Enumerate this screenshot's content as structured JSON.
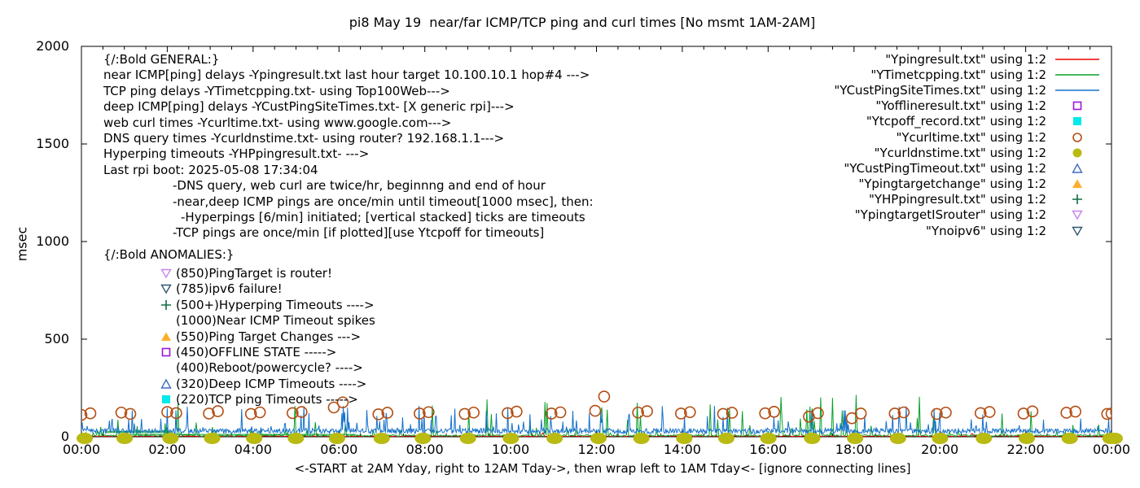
{
  "chart_data": {
    "type": "line",
    "title": "pi8 May 19  near/far ICMP/TCP ping and curl times [No msmt 1AM-2AM]",
    "xlabel": "<-START at 2AM Yday, right to 12AM Tday->, then wrap left to 1AM Tday<- [ignore connecting lines]",
    "ylabel": "msec",
    "ylim": [
      0,
      2000
    ],
    "hours": 24,
    "y_ticks": [
      "0",
      "500",
      "1000",
      "1500",
      "2000"
    ],
    "x_ticks": [
      "00:00",
      "02:00",
      "04:00",
      "06:00",
      "08:00",
      "10:00",
      "12:00",
      "14:00",
      "16:00",
      "18:00",
      "20:00",
      "22:00",
      "00:00"
    ],
    "grid": false,
    "legend_position": "top-right-inside",
    "note": "no measurements 1AM-2AM; msec values hug 0-160 at bottom of 0-2000 axis",
    "series": [
      {
        "name": "Ypingresult.txt",
        "type": "line",
        "color": "#ee0000",
        "gen": {
          "seed": 7,
          "points_per_hour": 20,
          "base": 1.5,
          "jitter": 3,
          "spike_prob": 0.004,
          "spike_min": 10,
          "spike_max": 30,
          "spike_pow": 2
        }
      },
      {
        "name": "YTimetcpping.txt",
        "type": "line",
        "color": "#09a02c",
        "gen": {
          "seed": 22,
          "points_per_hour": 40,
          "base": 2,
          "jitter": 9,
          "spike_prob": 0.085,
          "spike_min": 20,
          "spike_max": 215,
          "spike_pow": 2.2
        },
        "flat_segments": [
          {
            "h0": 0.55,
            "h1": 2.1,
            "v": 28
          },
          {
            "h0": 0.55,
            "h1": 2.1,
            "v": 22
          },
          {
            "h0": 1.1,
            "h1": 6.4,
            "v": 12
          }
        ]
      },
      {
        "name": "YCustPingSiteTimes.txt",
        "type": "line",
        "color": "#1470cc",
        "gen": {
          "seed": 33,
          "points_per_hour": 60,
          "base": 16,
          "jitter": 26,
          "spike_prob": 0.09,
          "spike_min": 40,
          "spike_max": 160,
          "spike_pow": 1.6
        }
      },
      {
        "name": "Yofflineresult.txt",
        "type": "points",
        "marker": "square-open",
        "color": "#9d13dd",
        "points": []
      },
      {
        "name": "Ytcpoff_record.txt",
        "type": "points",
        "marker": "square-filled",
        "color": "#00eaea",
        "points": []
      },
      {
        "name": "Ycurltime.txt",
        "type": "points",
        "marker": "circle-open",
        "color": "#b34d12",
        "pairs": [
          [
            0,
            112,
            120
          ],
          [
            0.93,
            124,
            117
          ],
          [
            2.0,
            127,
            121
          ],
          [
            2.97,
            119,
            131
          ],
          [
            3.95,
            117,
            125
          ],
          [
            4.92,
            121,
            127
          ],
          [
            5.88,
            150,
            176
          ],
          [
            6.92,
            115,
            123
          ],
          [
            7.88,
            119,
            126
          ],
          [
            8.93,
            117,
            124
          ],
          [
            9.93,
            121,
            129
          ],
          [
            10.95,
            119,
            125
          ],
          [
            11.97,
            133,
            206
          ],
          [
            12.97,
            124,
            131
          ],
          [
            13.97,
            119,
            126
          ],
          [
            14.95,
            117,
            123
          ],
          [
            15.93,
            120,
            128
          ],
          [
            16.95,
            103,
            121
          ],
          [
            17.95,
            95,
            119
          ],
          [
            18.95,
            119,
            125
          ],
          [
            19.93,
            117,
            124
          ],
          [
            20.95,
            121,
            127
          ],
          [
            21.95,
            119,
            130
          ],
          [
            22.95,
            123,
            129
          ],
          [
            23.9,
            117,
            125
          ],
          [
            24,
            119,
            113
          ]
        ]
      },
      {
        "name": "Ycurldnstime.txt",
        "type": "points",
        "marker": "circle-filled",
        "color": "#b9ba12",
        "at_value": 0,
        "hours": [
          0,
          0.93,
          2.0,
          2.97,
          3.95,
          4.92,
          5.88,
          6.92,
          7.88,
          8.93,
          9.93,
          10.95,
          11.97,
          12.97,
          13.97,
          14.95,
          15.93,
          16.95,
          17.95,
          18.95,
          19.93,
          20.95,
          21.95,
          22.95,
          23.9,
          24
        ]
      },
      {
        "name": "YCustPingTimeout.txt",
        "type": "points",
        "marker": "tri-up-open",
        "color": "#3f6cc0",
        "points": []
      },
      {
        "name": "Ypingtargetchange",
        "type": "points",
        "marker": "tri-up-filled",
        "color": "#fcae2b",
        "points": []
      },
      {
        "name": "YHPpingresult.txt",
        "type": "points",
        "marker": "plus",
        "color": "#156b46",
        "points": []
      },
      {
        "name": "YpingtargetISrouter",
        "type": "points",
        "marker": "tri-down-open",
        "color": "#c583f0",
        "points": []
      },
      {
        "name": "Ynoipv6",
        "type": "points",
        "marker": "tri-down-open",
        "color": "#2f566f",
        "points": []
      }
    ]
  },
  "legend": [
    {
      "label": "\"Ypingresult.txt\" using 1:2",
      "swatch": "line",
      "color": "#ee0000"
    },
    {
      "label": "\"YTimetcpping.txt\" using 1:2",
      "swatch": "line",
      "color": "#09a02c"
    },
    {
      "label": "\"YCustPingSiteTimes.txt\" using 1:2",
      "swatch": "line",
      "color": "#1470cc"
    },
    {
      "label": "\"Yofflineresult.txt\" using 1:2",
      "swatch": "square-open",
      "color": "#9d13dd"
    },
    {
      "label": "\"Ytcpoff_record.txt\" using 1:2",
      "swatch": "square-filled",
      "color": "#00eaea"
    },
    {
      "label": "\"Ycurltime.txt\" using 1:2",
      "swatch": "circle-open",
      "color": "#b34d12"
    },
    {
      "label": "\"Ycurldnstime.txt\" using 1:2",
      "swatch": "circle-filled",
      "color": "#b9ba12"
    },
    {
      "label": "\"YCustPingTimeout.txt\" using 1:2",
      "swatch": "tri-up-open",
      "color": "#3f6cc0"
    },
    {
      "label": "\"Ypingtargetchange\" using 1:2",
      "swatch": "tri-up-filled",
      "color": "#fcae2b"
    },
    {
      "label": "\"YHPpingresult.txt\" using 1:2",
      "swatch": "plus",
      "color": "#156b46"
    },
    {
      "label": "\"YpingtargetISrouter\" using 1:2",
      "swatch": "tri-down-open",
      "color": "#c583f0"
    },
    {
      "label": "\"Ynoipv6\" using 1:2",
      "swatch": "tri-down-open",
      "color": "#2f566f"
    }
  ],
  "annotations": {
    "general_lines": [
      {
        "indent": 0,
        "text": "{/:Bold GENERAL:}"
      },
      {
        "indent": 0,
        "text": "near ICMP[ping] delays -Ypingresult.txt last hour target 10.100.10.1 hop#4 --->"
      },
      {
        "indent": 0,
        "text": "TCP ping delays -YTimetcpping.txt- using Top100Web--->"
      },
      {
        "indent": 0,
        "text": "deep ICMP[ping] delays -YCustPingSiteTimes.txt- [X generic rpi]--->"
      },
      {
        "indent": 0,
        "text": "web curl times -Ycurltime.txt- using www.google.com--->"
      },
      {
        "indent": 0,
        "text": "DNS query times -Ycurldnstime.txt- using router? 192.168.1.1--->"
      },
      {
        "indent": 0,
        "text": "Hyperping timeouts -YHPpingresult.txt- --->"
      },
      {
        "indent": 0,
        "text": "Last rpi boot: 2025-05-08 17:34:04"
      },
      {
        "indent": 1,
        "text": "-DNS query, web curl are twice/hr, beginnng and end of hour"
      },
      {
        "indent": 1,
        "text": "-near,deep ICMP pings are once/min until timeout[1000 msec], then:"
      },
      {
        "indent": 2,
        "text": "-Hyperpings [6/min] initiated; [vertical stacked] ticks are timeouts"
      },
      {
        "indent": 1,
        "text": "-TCP pings are once/min [if plotted][use Ytcpoff for timeouts]"
      }
    ],
    "anomalies_heading": "{/:Bold ANOMALIES:}",
    "anomalies_items": [
      {
        "marker": "tri-down-open",
        "color": "#c583f0",
        "text": "(850)PingTarget is router!"
      },
      {
        "marker": "tri-down-open",
        "color": "#2f566f",
        "text": "(785)ipv6 failure!"
      },
      {
        "marker": "plus",
        "color": "#156b46",
        "text": "(500+)Hyperping Timeouts ---->"
      },
      {
        "marker": null,
        "color": null,
        "text": "(1000)Near ICMP Timeout spikes"
      },
      {
        "marker": "tri-up-filled",
        "color": "#fcae2b",
        "text": "(550)Ping Target Changes --->"
      },
      {
        "marker": "square-open",
        "color": "#9d13dd",
        "text": "(450)OFFLINE STATE ----->"
      },
      {
        "marker": null,
        "color": null,
        "text": "(400)Reboot/powercycle? ---->"
      },
      {
        "marker": "tri-up-open",
        "color": "#3f6cc0",
        "text": "(320)Deep ICMP Timeouts ---->"
      },
      {
        "marker": "square-filled",
        "color": "#00eaea",
        "text": "(220)TCP ping Timeouts ----->"
      }
    ]
  }
}
